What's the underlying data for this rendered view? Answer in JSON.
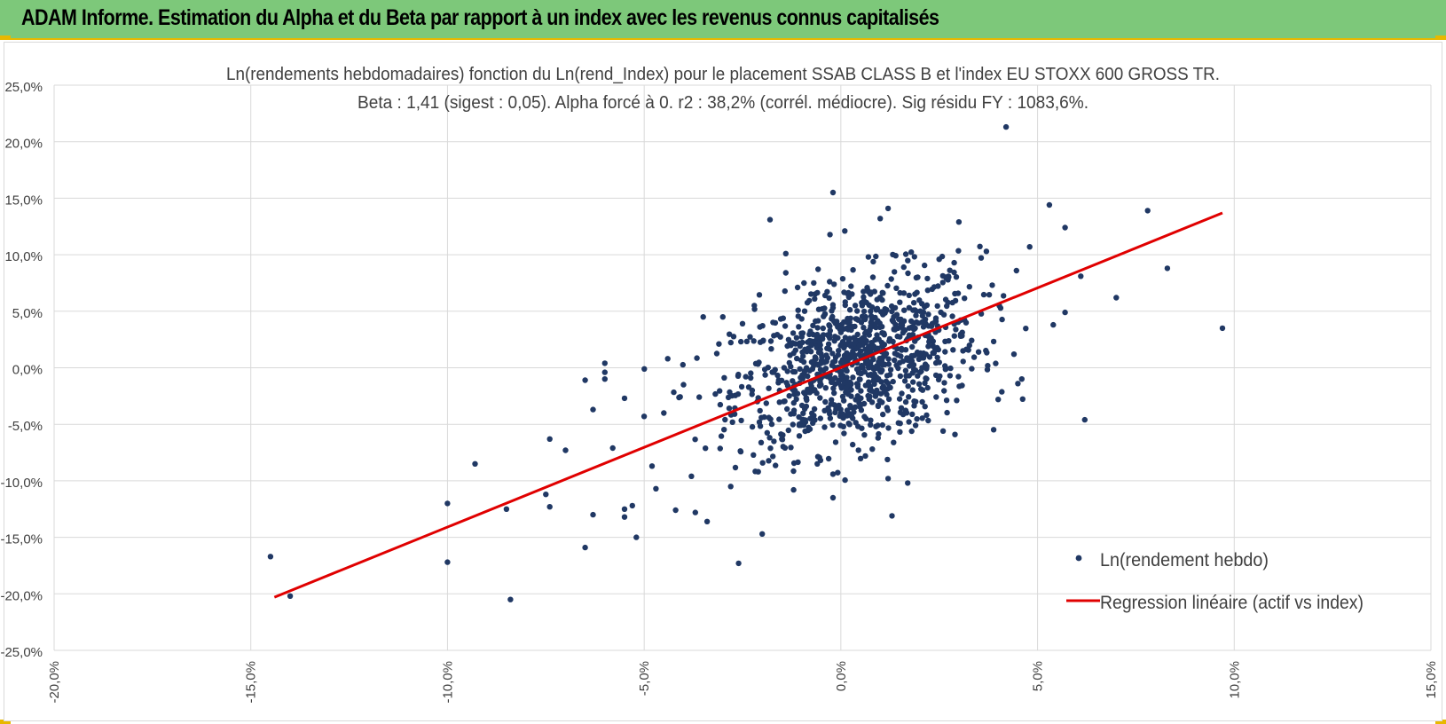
{
  "header": {
    "title": "ADAM Informe. Estimation du Alpha et du Beta par rapport à un index avec les revenus connus capitalisés",
    "background": "#7dc87a",
    "accent": "#e8b800"
  },
  "chart_data": {
    "type": "scatter",
    "title_line1": "Ln(rendements hebdomadaires) fonction du Ln(rend_Index) pour le placement SSAB CLASS B et l'index EU STOXX 600 GROSS TR.",
    "title_line2": "Beta : 1,41 (sigest : 0,05). Alpha forcé à 0. r2 : 38,2% (corrél. médiocre). Sig résidu FY : 1083,6%.",
    "x_ticks": [
      "-20,0%",
      "-15,0%",
      "-10,0%",
      "-5,0%",
      "0,0%",
      "5,0%",
      "10,0%",
      "15,0%"
    ],
    "y_ticks": [
      "25,0%",
      "20,0%",
      "15,0%",
      "10,0%",
      "5,0%",
      "0,0%",
      "-5,0%",
      "-10,0%",
      "-15,0%",
      "-20,0%",
      "-25,0%"
    ],
    "xlim": [
      -20,
      15
    ],
    "ylim": [
      -25,
      25
    ],
    "grid": true,
    "legend_position": "bottom-right",
    "series": [
      {
        "name": "Ln(rendement hebdo)",
        "kind": "scatter",
        "color": "#203864",
        "points": [
          [
            -14.5,
            -16.7
          ],
          [
            -14.0,
            -20.2
          ],
          [
            -10.0,
            -12.0
          ],
          [
            -10.0,
            -17.2
          ],
          [
            -9.3,
            -8.5
          ],
          [
            -8.5,
            -12.5
          ],
          [
            -8.4,
            -20.5
          ],
          [
            -7.5,
            -11.2
          ],
          [
            -7.4,
            -12.3
          ],
          [
            -7.4,
            -6.3
          ],
          [
            -7.0,
            -7.3
          ],
          [
            -6.5,
            -1.1
          ],
          [
            -6.5,
            -15.9
          ],
          [
            -6.3,
            -3.7
          ],
          [
            -6.3,
            -13.0
          ],
          [
            -6.0,
            0.4
          ],
          [
            -6.0,
            -0.4
          ],
          [
            -6.0,
            -1.0
          ],
          [
            -5.5,
            -2.7
          ],
          [
            -5.5,
            -12.5
          ],
          [
            -5.5,
            -13.2
          ],
          [
            -5.3,
            -12.2
          ],
          [
            -5.2,
            -15.0
          ],
          [
            -5.0,
            -4.3
          ],
          [
            -4.7,
            -10.7
          ],
          [
            -4.5,
            -4.0
          ],
          [
            -4.2,
            -12.6
          ],
          [
            -3.7,
            -12.8
          ],
          [
            -3.5,
            4.5
          ],
          [
            -3.4,
            -13.6
          ],
          [
            -3.0,
            4.5
          ],
          [
            -2.6,
            -17.3
          ],
          [
            -2.2,
            5.5
          ],
          [
            -2.0,
            -14.7
          ],
          [
            -1.8,
            13.1
          ],
          [
            -1.4,
            10.1
          ],
          [
            -1.4,
            8.4
          ],
          [
            -0.2,
            15.5
          ],
          [
            -0.2,
            -11.5
          ],
          [
            0.1,
            12.1
          ],
          [
            1.0,
            13.2
          ],
          [
            1.2,
            14.1
          ],
          [
            1.2,
            -9.8
          ],
          [
            1.3,
            -13.1
          ],
          [
            1.7,
            -10.2
          ],
          [
            3.0,
            12.9
          ],
          [
            3.7,
            10.3
          ],
          [
            4.2,
            21.3
          ],
          [
            4.8,
            10.7
          ],
          [
            5.3,
            14.4
          ],
          [
            5.4,
            3.8
          ],
          [
            5.7,
            12.4
          ],
          [
            5.7,
            4.9
          ],
          [
            6.1,
            8.1
          ],
          [
            6.2,
            -4.6
          ],
          [
            7.0,
            6.2
          ],
          [
            7.8,
            13.9
          ],
          [
            8.3,
            8.8
          ],
          [
            9.7,
            3.5
          ],
          [
            4.0,
            -2.8
          ],
          [
            4.5,
            -1.4
          ],
          [
            4.6,
            -1.0
          ],
          [
            4.4,
            1.2
          ],
          [
            3.5,
            1.4
          ],
          [
            2.6,
            -5.6
          ],
          [
            2.9,
            -5.9
          ],
          [
            0.8,
            -7.2
          ],
          [
            -0.6,
            -8.5
          ],
          [
            -1.2,
            -10.8
          ],
          [
            -2.8,
            -10.5
          ],
          [
            -3.8,
            -9.6
          ],
          [
            -4.8,
            -8.7
          ],
          [
            -5.8,
            -7.1
          ],
          [
            -2.1,
            -9.2
          ],
          [
            -1.5,
            -6.3
          ],
          [
            -0.9,
            -4.8
          ],
          [
            0.3,
            -6.8
          ],
          [
            1.9,
            -5.1
          ],
          [
            2.2,
            7.9
          ],
          [
            2.5,
            9.6
          ],
          [
            1.6,
            8.9
          ],
          [
            0.7,
            9.8
          ],
          [
            -0.4,
            6.4
          ],
          [
            -1.1,
            7.1
          ],
          [
            -2.5,
            3.9
          ],
          [
            -3.1,
            2.1
          ],
          [
            -4.0,
            -1.5
          ],
          [
            -4.4,
            0.8
          ],
          [
            -3.6,
            -2.6
          ],
          [
            -2.7,
            -4.1
          ]
        ],
        "cluster": {
          "center_x": 0.4,
          "center_y": 0.6,
          "count": 1020
        }
      },
      {
        "name": "Regression linéaire (actif vs index)",
        "kind": "line",
        "color": "#e00000",
        "x": [
          -14.4,
          9.7
        ],
        "y": [
          -20.3,
          13.7
        ]
      }
    ]
  }
}
